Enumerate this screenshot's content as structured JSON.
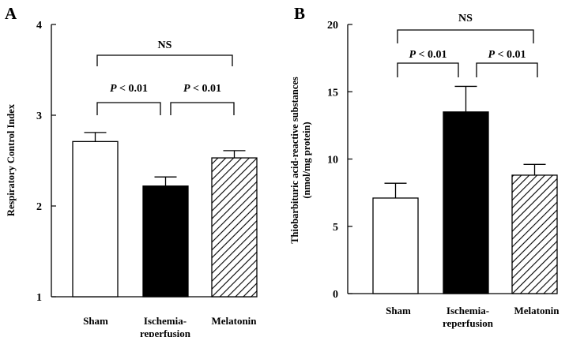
{
  "chart_data": [
    {
      "type": "bar",
      "panel_label": "A",
      "categories": [
        "Sham",
        "Ischemia-reperfusion",
        "Melatonin"
      ],
      "category_lines": [
        [
          "Sham"
        ],
        [
          "Ischemia-",
          "reperfusion"
        ],
        [
          "Melatonin"
        ]
      ],
      "values": [
        2.71,
        2.22,
        2.53
      ],
      "errors": [
        0.1,
        0.1,
        0.08
      ],
      "bar_styles": [
        "open",
        "filled",
        "hatched"
      ],
      "title": "",
      "xlabel": "",
      "ylabel": "Respiratory Control Index",
      "ylabel_lines": [
        "Respiratory Control Index"
      ],
      "ylim": [
        1,
        4
      ],
      "yticks": [
        "1",
        "2",
        "3",
        "4"
      ],
      "grid": false,
      "legend": "none",
      "annotations": [
        {
          "from": 0,
          "to": 1,
          "p_italic": "P",
          "text": " < 0.01"
        },
        {
          "from": 1,
          "to": 2,
          "p_italic": "P",
          "text": " < 0.01"
        },
        {
          "from": 0,
          "to": 2,
          "p_italic": "",
          "text": "NS"
        }
      ]
    },
    {
      "type": "bar",
      "panel_label": "B",
      "categories": [
        "Sham",
        "Ischemia-reperfusion",
        "Melatonin"
      ],
      "category_lines": [
        [
          "Sham"
        ],
        [
          "Ischemia-",
          "reperfusion"
        ],
        [
          "Melatonin"
        ]
      ],
      "values": [
        7.1,
        13.5,
        8.8
      ],
      "errors": [
        1.1,
        1.9,
        0.8
      ],
      "bar_styles": [
        "open",
        "filled",
        "hatched"
      ],
      "title": "",
      "xlabel": "",
      "ylabel": "Thiobarbituric acid-reactive substances (nmol/mg protein)",
      "ylabel_lines": [
        "Thiobarbituric acid-reactive substances",
        "(nmol/mg protein)"
      ],
      "ylim": [
        0,
        20
      ],
      "yticks": [
        "0",
        "5",
        "10",
        "15",
        "20"
      ],
      "grid": false,
      "legend": "none",
      "annotations": [
        {
          "from": 0,
          "to": 1,
          "p_italic": "P",
          "text": " < 0.01"
        },
        {
          "from": 1,
          "to": 2,
          "p_italic": "P",
          "text": " < 0.01"
        },
        {
          "from": 0,
          "to": 2,
          "p_italic": "",
          "text": "NS"
        }
      ]
    }
  ]
}
